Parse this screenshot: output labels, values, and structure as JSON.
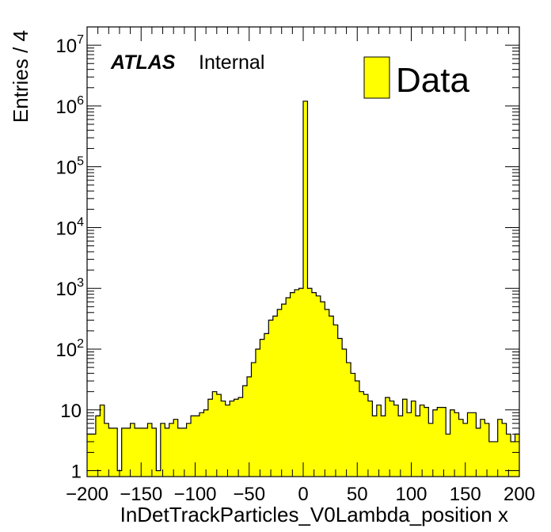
{
  "chart_data": {
    "type": "histogram",
    "atlas_label": "ATLAS",
    "atlas_sublabel": "Internal",
    "xlabel": "InDetTrackParticles_V0Lambda_position x",
    "ylabel": "Entries / 4",
    "xlim": [
      -200,
      200
    ],
    "ylim": [
      0.8,
      20000000
    ],
    "yscale": "log",
    "bin_width": 4,
    "fill_color": "#ffff00",
    "x_ticks": [
      "−200",
      "−150",
      "−100",
      "−50",
      "0",
      "50",
      "100",
      "150",
      "200"
    ],
    "y_tick_labels": [
      {
        "value": 1,
        "base": "1",
        "exp": ""
      },
      {
        "value": 10,
        "base": "10",
        "exp": ""
      },
      {
        "value": 100,
        "base": "10",
        "exp": "2"
      },
      {
        "value": 1000,
        "base": "10",
        "exp": "3"
      },
      {
        "value": 10000,
        "base": "10",
        "exp": "4"
      },
      {
        "value": 100000,
        "base": "10",
        "exp": "5"
      },
      {
        "value": 1000000,
        "base": "10",
        "exp": "6"
      },
      {
        "value": 10000000,
        "base": "10",
        "exp": "7"
      }
    ],
    "legend": {
      "label": "Data",
      "position": "top-right"
    },
    "series": [
      {
        "name": "Data",
        "x": [
          -198,
          -194,
          -190,
          -186,
          -182,
          -178,
          -174,
          -170,
          -166,
          -162,
          -158,
          -154,
          -150,
          -146,
          -142,
          -138,
          -134,
          -130,
          -126,
          -122,
          -118,
          -114,
          -110,
          -106,
          -102,
          -98,
          -94,
          -90,
          -86,
          -82,
          -78,
          -74,
          -70,
          -66,
          -62,
          -58,
          -54,
          -50,
          -46,
          -42,
          -38,
          -34,
          -30,
          -26,
          -22,
          -18,
          -14,
          -10,
          -6,
          -2,
          2,
          6,
          10,
          14,
          18,
          22,
          26,
          30,
          34,
          38,
          42,
          46,
          50,
          54,
          58,
          62,
          66,
          70,
          74,
          78,
          82,
          86,
          90,
          94,
          98,
          102,
          106,
          110,
          114,
          118,
          122,
          126,
          130,
          134,
          138,
          142,
          146,
          150,
          154,
          158,
          162,
          166,
          170,
          174,
          178,
          182,
          186,
          190,
          194,
          198
        ],
        "values": [
          4,
          4,
          8,
          12,
          6,
          5,
          5,
          1,
          5,
          5,
          6,
          5,
          5,
          5,
          6,
          5,
          1,
          6,
          5,
          6,
          7,
          5,
          5,
          6,
          8,
          8,
          9,
          10,
          15,
          20,
          18,
          14,
          12,
          14,
          15,
          16,
          25,
          35,
          60,
          100,
          145,
          180,
          300,
          350,
          450,
          550,
          700,
          850,
          950,
          1000,
          1200000,
          1000,
          850,
          750,
          600,
          450,
          350,
          250,
          150,
          100,
          60,
          40,
          30,
          20,
          18,
          14,
          8,
          12,
          8,
          16,
          14,
          12,
          8,
          15,
          9,
          14,
          8,
          12,
          11,
          6,
          10,
          11,
          11,
          4,
          10,
          9,
          7,
          6,
          9,
          9,
          5,
          7,
          6,
          3,
          3,
          7,
          6,
          4,
          3,
          4
        ]
      }
    ]
  }
}
